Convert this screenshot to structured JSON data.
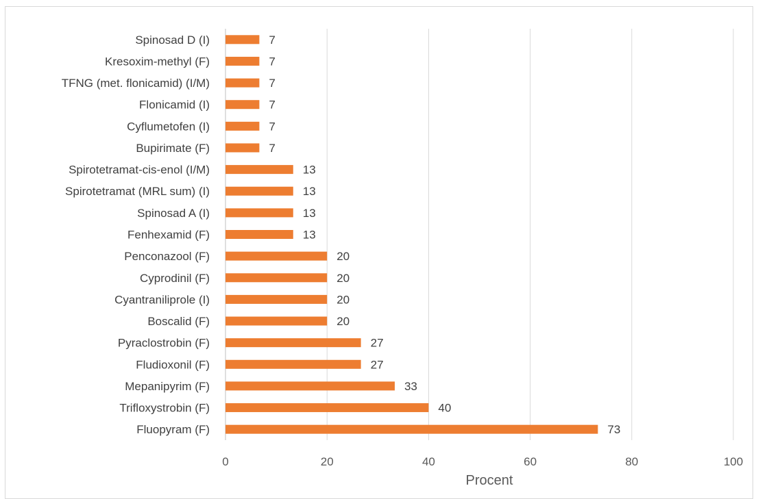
{
  "chart_data": {
    "type": "bar",
    "orientation": "horizontal",
    "title": "",
    "xlabel": "Procent",
    "ylabel": "",
    "xlim": [
      0,
      100
    ],
    "xticks": [
      "0",
      "20",
      "40",
      "60",
      "80",
      "100"
    ],
    "grid": true,
    "legend": "none",
    "bar_color": "#ED7D31",
    "categories": [
      "Spinosad D (I)",
      "Kresoxim-methyl (F)",
      "TFNG (met. flonicamid) (I/M)",
      "Flonicamid (I)",
      "Cyflumetofen (I)",
      "Bupirimate (F)",
      "Spirotetramat-cis-enol (I/M)",
      "Spirotetramat (MRL sum) (I)",
      "Spinosad A (I)",
      "Fenhexamid (F)",
      "Penconazool (F)",
      "Cyprodinil (F)",
      "Cyantraniliprole (I)",
      "Boscalid (F)",
      "Pyraclostrobin (F)",
      "Fludioxonil (F)",
      "Mepanipyrim (F)",
      "Trifloxystrobin (F)",
      "Fluopyram (F)"
    ],
    "values": [
      7,
      7,
      7,
      7,
      7,
      7,
      13,
      13,
      13,
      13,
      20,
      20,
      20,
      20,
      27,
      27,
      33,
      40,
      73
    ],
    "plot_values": [
      6.67,
      6.67,
      6.67,
      6.67,
      6.67,
      6.67,
      13.33,
      13.33,
      13.33,
      13.33,
      20,
      20,
      20,
      20,
      26.67,
      26.67,
      33.33,
      40,
      73.33
    ]
  }
}
